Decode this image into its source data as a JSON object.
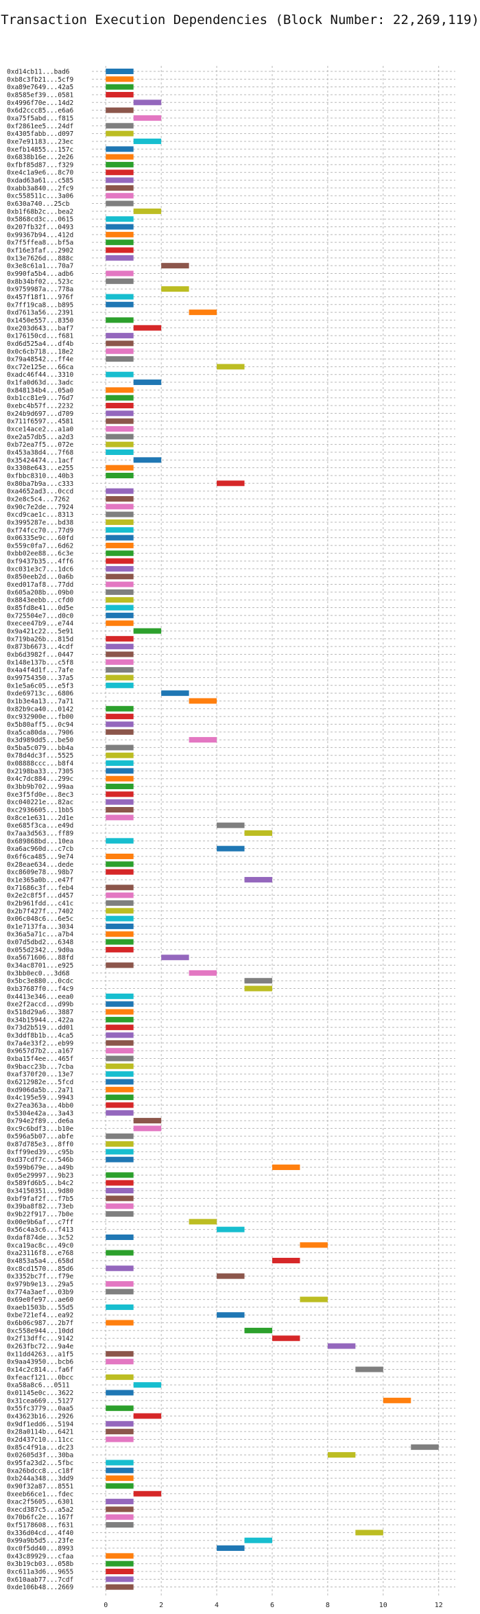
{
  "chart_data": {
    "type": "bar",
    "orientation": "horizontal-gantt",
    "title": "Transaction Execution Dependencies (Block Number: 22,269,119)",
    "xlabel": "",
    "ylabel": "",
    "xlim": [
      -0.5,
      12.6
    ],
    "xticks": [
      0,
      2,
      4,
      6,
      8,
      10,
      12
    ],
    "grid": "dashed",
    "palette": [
      "#1f77b4",
      "#ff7f0e",
      "#2ca02c",
      "#d62728",
      "#9467bd",
      "#8c564b",
      "#e377c2",
      "#7f7f7f",
      "#bcbd22",
      "#17becf"
    ],
    "transactions": [
      {
        "tx": "0xd14cb11...bad6",
        "start": 0,
        "end": 1
      },
      {
        "tx": "0xb8c3fb21...5cf9",
        "start": 0,
        "end": 1
      },
      {
        "tx": "0xa89e7649...42a5",
        "start": 0,
        "end": 1
      },
      {
        "tx": "0x8585ef39...0581",
        "start": 0,
        "end": 1
      },
      {
        "tx": "0x4996f70e...14d2",
        "start": 1,
        "end": 2
      },
      {
        "tx": "0x6d2ccc85...e6a6",
        "start": 0,
        "end": 1
      },
      {
        "tx": "0xa75f5abd...f815",
        "start": 1,
        "end": 2
      },
      {
        "tx": "0xf2861ee5...24df",
        "start": 0,
        "end": 1
      },
      {
        "tx": "0x4305fabb...d097",
        "start": 0,
        "end": 1
      },
      {
        "tx": "0xe7e91183...23ec",
        "start": 1,
        "end": 2
      },
      {
        "tx": "0xefb14855...157c",
        "start": 0,
        "end": 1
      },
      {
        "tx": "0x6838b16e...2e26",
        "start": 0,
        "end": 1
      },
      {
        "tx": "0xfbf85d87...f329",
        "start": 0,
        "end": 1
      },
      {
        "tx": "0xe4c1a9e6...8c70",
        "start": 0,
        "end": 1
      },
      {
        "tx": "0xdad63a61...c585",
        "start": 0,
        "end": 1
      },
      {
        "tx": "0xabb3a840...2fc9",
        "start": 0,
        "end": 1
      },
      {
        "tx": "0xc558511c...3a06",
        "start": 0,
        "end": 1
      },
      {
        "tx": "0x630a740...25cb",
        "start": 0,
        "end": 1
      },
      {
        "tx": "0xb1f68b2c...bea2",
        "start": 1,
        "end": 2
      },
      {
        "tx": "0x5868cd3c...0615",
        "start": 0,
        "end": 1
      },
      {
        "tx": "0x207fb32f...0493",
        "start": 0,
        "end": 1
      },
      {
        "tx": "0x99367b94...412d",
        "start": 0,
        "end": 1
      },
      {
        "tx": "0x7f5ffea8...bf5a",
        "start": 0,
        "end": 1
      },
      {
        "tx": "0xf16e3faf...2902",
        "start": 0,
        "end": 1
      },
      {
        "tx": "0x13e7626d...888c",
        "start": 0,
        "end": 1
      },
      {
        "tx": "0x3e8c61a1...70a7",
        "start": 2,
        "end": 3
      },
      {
        "tx": "0x990fa5b4...adb6",
        "start": 0,
        "end": 1
      },
      {
        "tx": "0x8b34bf02...523c",
        "start": 0,
        "end": 1
      },
      {
        "tx": "0x9759987a...778a",
        "start": 2,
        "end": 3
      },
      {
        "tx": "0x457f18f1...976f",
        "start": 0,
        "end": 1
      },
      {
        "tx": "0x7ff19ca8...b895",
        "start": 0,
        "end": 1
      },
      {
        "tx": "0xd7613a56...2391",
        "start": 3,
        "end": 4
      },
      {
        "tx": "0x1450e557...8350",
        "start": 0,
        "end": 1
      },
      {
        "tx": "0xe203d643...baf7",
        "start": 1,
        "end": 2
      },
      {
        "tx": "0x176150cd...f681",
        "start": 0,
        "end": 1
      },
      {
        "tx": "0xd6d525a4...df4b",
        "start": 0,
        "end": 1
      },
      {
        "tx": "0x0c6cb718...18e2",
        "start": 0,
        "end": 1
      },
      {
        "tx": "0x79a48542...ff4e",
        "start": 0,
        "end": 1
      },
      {
        "tx": "0xc72e125e...66ca",
        "start": 4,
        "end": 5
      },
      {
        "tx": "0xadc46f44...3310",
        "start": 0,
        "end": 1
      },
      {
        "tx": "0x1fa0d63d...3adc",
        "start": 1,
        "end": 2
      },
      {
        "tx": "0x848134b4...05a0",
        "start": 0,
        "end": 1
      },
      {
        "tx": "0xb1cc81e9...76d7",
        "start": 0,
        "end": 1
      },
      {
        "tx": "0xebc4b57f...2232",
        "start": 0,
        "end": 1
      },
      {
        "tx": "0x24b9d697...d709",
        "start": 0,
        "end": 1
      },
      {
        "tx": "0x711f6597...4581",
        "start": 0,
        "end": 1
      },
      {
        "tx": "0xce14ace2...a1a0",
        "start": 0,
        "end": 1
      },
      {
        "tx": "0xe2a57db5...a2d3",
        "start": 0,
        "end": 1
      },
      {
        "tx": "0xb72ea7f5...072e",
        "start": 0,
        "end": 1
      },
      {
        "tx": "0x453a38d4...7f68",
        "start": 0,
        "end": 1
      },
      {
        "tx": "0x35424474...1acf",
        "start": 1,
        "end": 2
      },
      {
        "tx": "0x3308e643...e255",
        "start": 0,
        "end": 1
      },
      {
        "tx": "0xfbbc8310...40b3",
        "start": 0,
        "end": 1
      },
      {
        "tx": "0x80ba7b9a...c333",
        "start": 4,
        "end": 5
      },
      {
        "tx": "0xa4652ad3...0ccd",
        "start": 0,
        "end": 1
      },
      {
        "tx": "0x2e8c5c4...7262",
        "start": 0,
        "end": 1
      },
      {
        "tx": "0x90c7e2de...7924",
        "start": 0,
        "end": 1
      },
      {
        "tx": "0xcd9cae1c...8313",
        "start": 0,
        "end": 1
      },
      {
        "tx": "0x3995287e...bd38",
        "start": 0,
        "end": 1
      },
      {
        "tx": "0xf74fcc70...77d9",
        "start": 0,
        "end": 1
      },
      {
        "tx": "0x06335e9c...60fd",
        "start": 0,
        "end": 1
      },
      {
        "tx": "0x559c0fa7...6d62",
        "start": 0,
        "end": 1
      },
      {
        "tx": "0xbb02ee88...6c3e",
        "start": 0,
        "end": 1
      },
      {
        "tx": "0xf9437b35...4ff6",
        "start": 0,
        "end": 1
      },
      {
        "tx": "0xc031e3c7...1dc6",
        "start": 0,
        "end": 1
      },
      {
        "tx": "0x850eeb2d...0a6b",
        "start": 0,
        "end": 1
      },
      {
        "tx": "0xed017af8...77dd",
        "start": 0,
        "end": 1
      },
      {
        "tx": "0x605a208b...09b0",
        "start": 0,
        "end": 1
      },
      {
        "tx": "0x8843eebb...cfd0",
        "start": 0,
        "end": 1
      },
      {
        "tx": "0x85fd8e41...0d5e",
        "start": 0,
        "end": 1
      },
      {
        "tx": "0x725504e7...d0c0",
        "start": 0,
        "end": 1
      },
      {
        "tx": "0xecee47b9...e744",
        "start": 0,
        "end": 1
      },
      {
        "tx": "0x9a421c22...5e91",
        "start": 1,
        "end": 2
      },
      {
        "tx": "0x719ba26b...815d",
        "start": 0,
        "end": 1
      },
      {
        "tx": "0x873b6673...4cdf",
        "start": 0,
        "end": 1
      },
      {
        "tx": "0xb6d3982f...0447",
        "start": 0,
        "end": 1
      },
      {
        "tx": "0x148e137b...c5f8",
        "start": 0,
        "end": 1
      },
      {
        "tx": "0x4a4f4d1f...7afe",
        "start": 0,
        "end": 1
      },
      {
        "tx": "0x99754350...37a5",
        "start": 0,
        "end": 1
      },
      {
        "tx": "0x1e5a6c05...e5f3",
        "start": 0,
        "end": 1
      },
      {
        "tx": "0xde69713c...6806",
        "start": 2,
        "end": 3
      },
      {
        "tx": "0x1b3e4a13...7a71",
        "start": 3,
        "end": 4
      },
      {
        "tx": "0x82b9ca40...0142",
        "start": 0,
        "end": 1
      },
      {
        "tx": "0xc932900e...fb00",
        "start": 0,
        "end": 1
      },
      {
        "tx": "0x5b80aff5...0c94",
        "start": 0,
        "end": 1
      },
      {
        "tx": "0xa5ca80da...7906",
        "start": 0,
        "end": 1
      },
      {
        "tx": "0x3d989dd5...be50",
        "start": 3,
        "end": 4
      },
      {
        "tx": "0x5ba5c079...bb4a",
        "start": 0,
        "end": 1
      },
      {
        "tx": "0x78d4dc3f...5525",
        "start": 0,
        "end": 1
      },
      {
        "tx": "0x08888ccc...b8f4",
        "start": 0,
        "end": 1
      },
      {
        "tx": "0x2198ba33...7305",
        "start": 0,
        "end": 1
      },
      {
        "tx": "0x4c7dc884...299c",
        "start": 0,
        "end": 1
      },
      {
        "tx": "0x3bb9b702...99aa",
        "start": 0,
        "end": 1
      },
      {
        "tx": "0xe3f5fd0e...8ec3",
        "start": 0,
        "end": 1
      },
      {
        "tx": "0xc040221e...82ac",
        "start": 0,
        "end": 1
      },
      {
        "tx": "0xc2936605...1bb5",
        "start": 0,
        "end": 1
      },
      {
        "tx": "0x8ce1e631...2d1e",
        "start": 0,
        "end": 1
      },
      {
        "tx": "0xe685f3ca...e49d",
        "start": 4,
        "end": 5
      },
      {
        "tx": "0x7aa3d563...ff89",
        "start": 5,
        "end": 6
      },
      {
        "tx": "0x689868bd...10ea",
        "start": 0,
        "end": 1
      },
      {
        "tx": "0xa6ac960d...c7cb",
        "start": 4,
        "end": 5
      },
      {
        "tx": "0x6f6ca485...9e74",
        "start": 0,
        "end": 1
      },
      {
        "tx": "0x28eae634...dede",
        "start": 0,
        "end": 1
      },
      {
        "tx": "0xc8609e78...98b7",
        "start": 0,
        "end": 1
      },
      {
        "tx": "0x1e365a0b...e47f",
        "start": 5,
        "end": 6
      },
      {
        "tx": "0x71686c3f...feb4",
        "start": 0,
        "end": 1
      },
      {
        "tx": "0x2e2c8f5f...d457",
        "start": 0,
        "end": 1
      },
      {
        "tx": "0x2b961fdd...c41c",
        "start": 0,
        "end": 1
      },
      {
        "tx": "0x2b7f427f...7402",
        "start": 0,
        "end": 1
      },
      {
        "tx": "0x06c048c6...6e5c",
        "start": 0,
        "end": 1
      },
      {
        "tx": "0x1e7137fa...3034",
        "start": 0,
        "end": 1
      },
      {
        "tx": "0x36a5a71c...a7b4",
        "start": 0,
        "end": 1
      },
      {
        "tx": "0x07d5dbd2...6348",
        "start": 0,
        "end": 1
      },
      {
        "tx": "0x055d2342...9d0a",
        "start": 0,
        "end": 1
      },
      {
        "tx": "0xa5671606...88fd",
        "start": 2,
        "end": 3
      },
      {
        "tx": "0x34ac8701...e925",
        "start": 0,
        "end": 1
      },
      {
        "tx": "0x3bb0ec0...3d68",
        "start": 3,
        "end": 4
      },
      {
        "tx": "0x5bc3e880...0cdc",
        "start": 5,
        "end": 6
      },
      {
        "tx": "0xb37687f0...f4c9",
        "start": 5,
        "end": 6
      },
      {
        "tx": "0x4413e346...eea0",
        "start": 0,
        "end": 1
      },
      {
        "tx": "0xe2f2accd...d99b",
        "start": 0,
        "end": 1
      },
      {
        "tx": "0x518d29a6...3887",
        "start": 0,
        "end": 1
      },
      {
        "tx": "0x34b15944...422a",
        "start": 0,
        "end": 1
      },
      {
        "tx": "0x73d2b519...dd01",
        "start": 0,
        "end": 1
      },
      {
        "tx": "0x3ddf8b1b...4ca5",
        "start": 0,
        "end": 1
      },
      {
        "tx": "0x7a4e33f2...eb99",
        "start": 0,
        "end": 1
      },
      {
        "tx": "0x9657d7b2...a167",
        "start": 0,
        "end": 1
      },
      {
        "tx": "0xba15f4ee...465f",
        "start": 0,
        "end": 1
      },
      {
        "tx": "0x9bacc23b...7cba",
        "start": 0,
        "end": 1
      },
      {
        "tx": "0xaf370f20...13e7",
        "start": 0,
        "end": 1
      },
      {
        "tx": "0x6212982e...5fcd",
        "start": 0,
        "end": 1
      },
      {
        "tx": "0xd906da5b...2a71",
        "start": 0,
        "end": 1
      },
      {
        "tx": "0x4c195e59...9943",
        "start": 0,
        "end": 1
      },
      {
        "tx": "0x27ea363a...4bb0",
        "start": 0,
        "end": 1
      },
      {
        "tx": "0x5304e42a...3a43",
        "start": 0,
        "end": 1
      },
      {
        "tx": "0x794e2f89...de6a",
        "start": 1,
        "end": 2
      },
      {
        "tx": "0xc9c6bdf3...b10e",
        "start": 1,
        "end": 2
      },
      {
        "tx": "0x596a5b07...abfe",
        "start": 0,
        "end": 1
      },
      {
        "tx": "0x87d785e3...8ff0",
        "start": 0,
        "end": 1
      },
      {
        "tx": "0xff99ed39...c95b",
        "start": 0,
        "end": 1
      },
      {
        "tx": "0xd37cdf7c...546b",
        "start": 0,
        "end": 1
      },
      {
        "tx": "0x599b679e...a49b",
        "start": 6,
        "end": 7
      },
      {
        "tx": "0x05e29997...9b23",
        "start": 0,
        "end": 1
      },
      {
        "tx": "0x589fd6b5...b4c2",
        "start": 0,
        "end": 1
      },
      {
        "tx": "0x34150351...9d80",
        "start": 0,
        "end": 1
      },
      {
        "tx": "0xbf9faf2f...f7b5",
        "start": 0,
        "end": 1
      },
      {
        "tx": "0x39ba8f82...73eb",
        "start": 0,
        "end": 1
      },
      {
        "tx": "0x9b22f917...7b0e",
        "start": 0,
        "end": 1
      },
      {
        "tx": "0x00e9b6af...c7ff",
        "start": 3,
        "end": 4
      },
      {
        "tx": "0x56c4a3c6...f413",
        "start": 4,
        "end": 5
      },
      {
        "tx": "0xdaf874de...3c52",
        "start": 0,
        "end": 1
      },
      {
        "tx": "0xca19ac8c...49c0",
        "start": 7,
        "end": 8
      },
      {
        "tx": "0xa23116f8...e768",
        "start": 0,
        "end": 1
      },
      {
        "tx": "0x4853a5a4...658d",
        "start": 6,
        "end": 7
      },
      {
        "tx": "0xc8cd1570...85d6",
        "start": 0,
        "end": 1
      },
      {
        "tx": "0x3352bc7f...f79e",
        "start": 4,
        "end": 5
      },
      {
        "tx": "0x979b9e13...29a5",
        "start": 0,
        "end": 1
      },
      {
        "tx": "0x774a3aef...03b9",
        "start": 0,
        "end": 1
      },
      {
        "tx": "0x69e0fe97...ae60",
        "start": 7,
        "end": 8
      },
      {
        "tx": "0xaeb1503b...55d5",
        "start": 0,
        "end": 1
      },
      {
        "tx": "0xbe721ef4...ea92",
        "start": 4,
        "end": 5
      },
      {
        "tx": "0x6b06c987...2b7f",
        "start": 0,
        "end": 1
      },
      {
        "tx": "0xc558e944...10dd",
        "start": 5,
        "end": 6
      },
      {
        "tx": "0x2f13dffc...9142",
        "start": 6,
        "end": 7
      },
      {
        "tx": "0x263fbc72...9a4e",
        "start": 8,
        "end": 9
      },
      {
        "tx": "0x11dd4263...a1f5",
        "start": 0,
        "end": 1
      },
      {
        "tx": "0x9aa43950...bcb6",
        "start": 0,
        "end": 1
      },
      {
        "tx": "0x14c2c814...fa6f",
        "start": 9,
        "end": 10
      },
      {
        "tx": "0xfeacf121...0bcc",
        "start": 0,
        "end": 1
      },
      {
        "tx": "0xa58a8c6...0511",
        "start": 1,
        "end": 2
      },
      {
        "tx": "0x01145e0c...3622",
        "start": 0,
        "end": 1
      },
      {
        "tx": "0x31cea669...5127",
        "start": 10,
        "end": 11
      },
      {
        "tx": "0x55fc3779...0aa5",
        "start": 0,
        "end": 1
      },
      {
        "tx": "0x43623b16...2926",
        "start": 1,
        "end": 2
      },
      {
        "tx": "0x9df1edd6...5194",
        "start": 0,
        "end": 1
      },
      {
        "tx": "0x28a0114b...6421",
        "start": 0,
        "end": 1
      },
      {
        "tx": "0x2d437c10...11cc",
        "start": 0,
        "end": 1
      },
      {
        "tx": "0x85c4f91a...dc23",
        "start": 11,
        "end": 12
      },
      {
        "tx": "0x02605d3f...30ba",
        "start": 8,
        "end": 9
      },
      {
        "tx": "0x95fa23d2...5fbc",
        "start": 0,
        "end": 1
      },
      {
        "tx": "0xa26bdcc8...c18f",
        "start": 0,
        "end": 1
      },
      {
        "tx": "0xb244a348...3dd9",
        "start": 0,
        "end": 1
      },
      {
        "tx": "0x90f32a87...8551",
        "start": 0,
        "end": 1
      },
      {
        "tx": "0xeeb66ce1...fdec",
        "start": 1,
        "end": 2
      },
      {
        "tx": "0xac2f5605...6301",
        "start": 0,
        "end": 1
      },
      {
        "tx": "0xecd387c5...a5a2",
        "start": 0,
        "end": 1
      },
      {
        "tx": "0x70b6fc2e...167f",
        "start": 0,
        "end": 1
      },
      {
        "tx": "0xf5178608...f631",
        "start": 0,
        "end": 1
      },
      {
        "tx": "0x336d04cd...4f40",
        "start": 9,
        "end": 10
      },
      {
        "tx": "0x99a9b5d5...23fe",
        "start": 5,
        "end": 6
      },
      {
        "tx": "0xc0f5dd40...8993",
        "start": 4,
        "end": 5
      },
      {
        "tx": "0x43c89929...cfaa",
        "start": 0,
        "end": 1
      },
      {
        "tx": "0x3b19cb03...058b",
        "start": 0,
        "end": 1
      },
      {
        "tx": "0xc611a3d6...9655",
        "start": 0,
        "end": 1
      },
      {
        "tx": "0x610aab77...7cdf",
        "start": 0,
        "end": 1
      },
      {
        "tx": "0xde106b48...2669",
        "start": 0,
        "end": 1
      }
    ]
  }
}
